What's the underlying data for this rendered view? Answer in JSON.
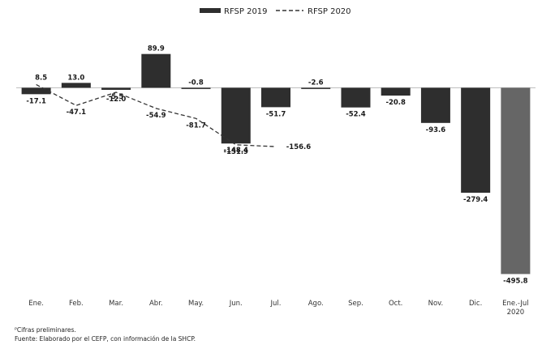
{
  "chart_data": {
    "type": "bar",
    "categories": [
      "Ene.",
      "Feb.",
      "Mar.",
      "Abr.",
      "May.",
      "Jun.",
      "Jul.",
      "Ago.",
      "Sep.",
      "Oct.",
      "Nov.",
      "Dic.",
      "Ene.-Jul 2020"
    ],
    "series": [
      {
        "name": "RFSP 2019",
        "type": "bar",
        "values": [
          -17.1,
          13.0,
          -5.5,
          89.9,
          -0.8,
          -148.4,
          -51.7,
          -2.6,
          -52.4,
          -20.8,
          -93.6,
          -279.4,
          -495.8
        ],
        "labels": [
          "-17.1",
          "13.0",
          "-5.5",
          "89.9",
          "-0.8",
          "-148.4",
          "-51.7",
          "-2.6",
          "-52.4",
          "-20.8",
          "-93.6",
          "-279.4",
          "-495.8"
        ]
      },
      {
        "name": "RFSP 2020",
        "type": "line",
        "style": "dashed",
        "values": [
          8.5,
          -47.1,
          -12.0,
          -54.9,
          -81.7,
          -151.9,
          -156.6,
          null,
          null,
          null,
          null,
          null,
          null
        ],
        "labels": [
          "8.5",
          "-47.1",
          "-12.0",
          "-54.9",
          "-81.7",
          "-151.9",
          "-156.6",
          null,
          null,
          null,
          null,
          null,
          null
        ]
      }
    ],
    "ylim": [
      -510,
      100
    ],
    "grid": false,
    "legend_position": "top-center",
    "colors": {
      "bar": "#2e2e2e",
      "bar_highlight": "#666666",
      "line": "#333333"
    }
  },
  "footnotes": {
    "preliminary": "ᴾCifras preliminares.",
    "source": "Fuente: Elaborado por el CEFP, con información de la SHCP."
  }
}
